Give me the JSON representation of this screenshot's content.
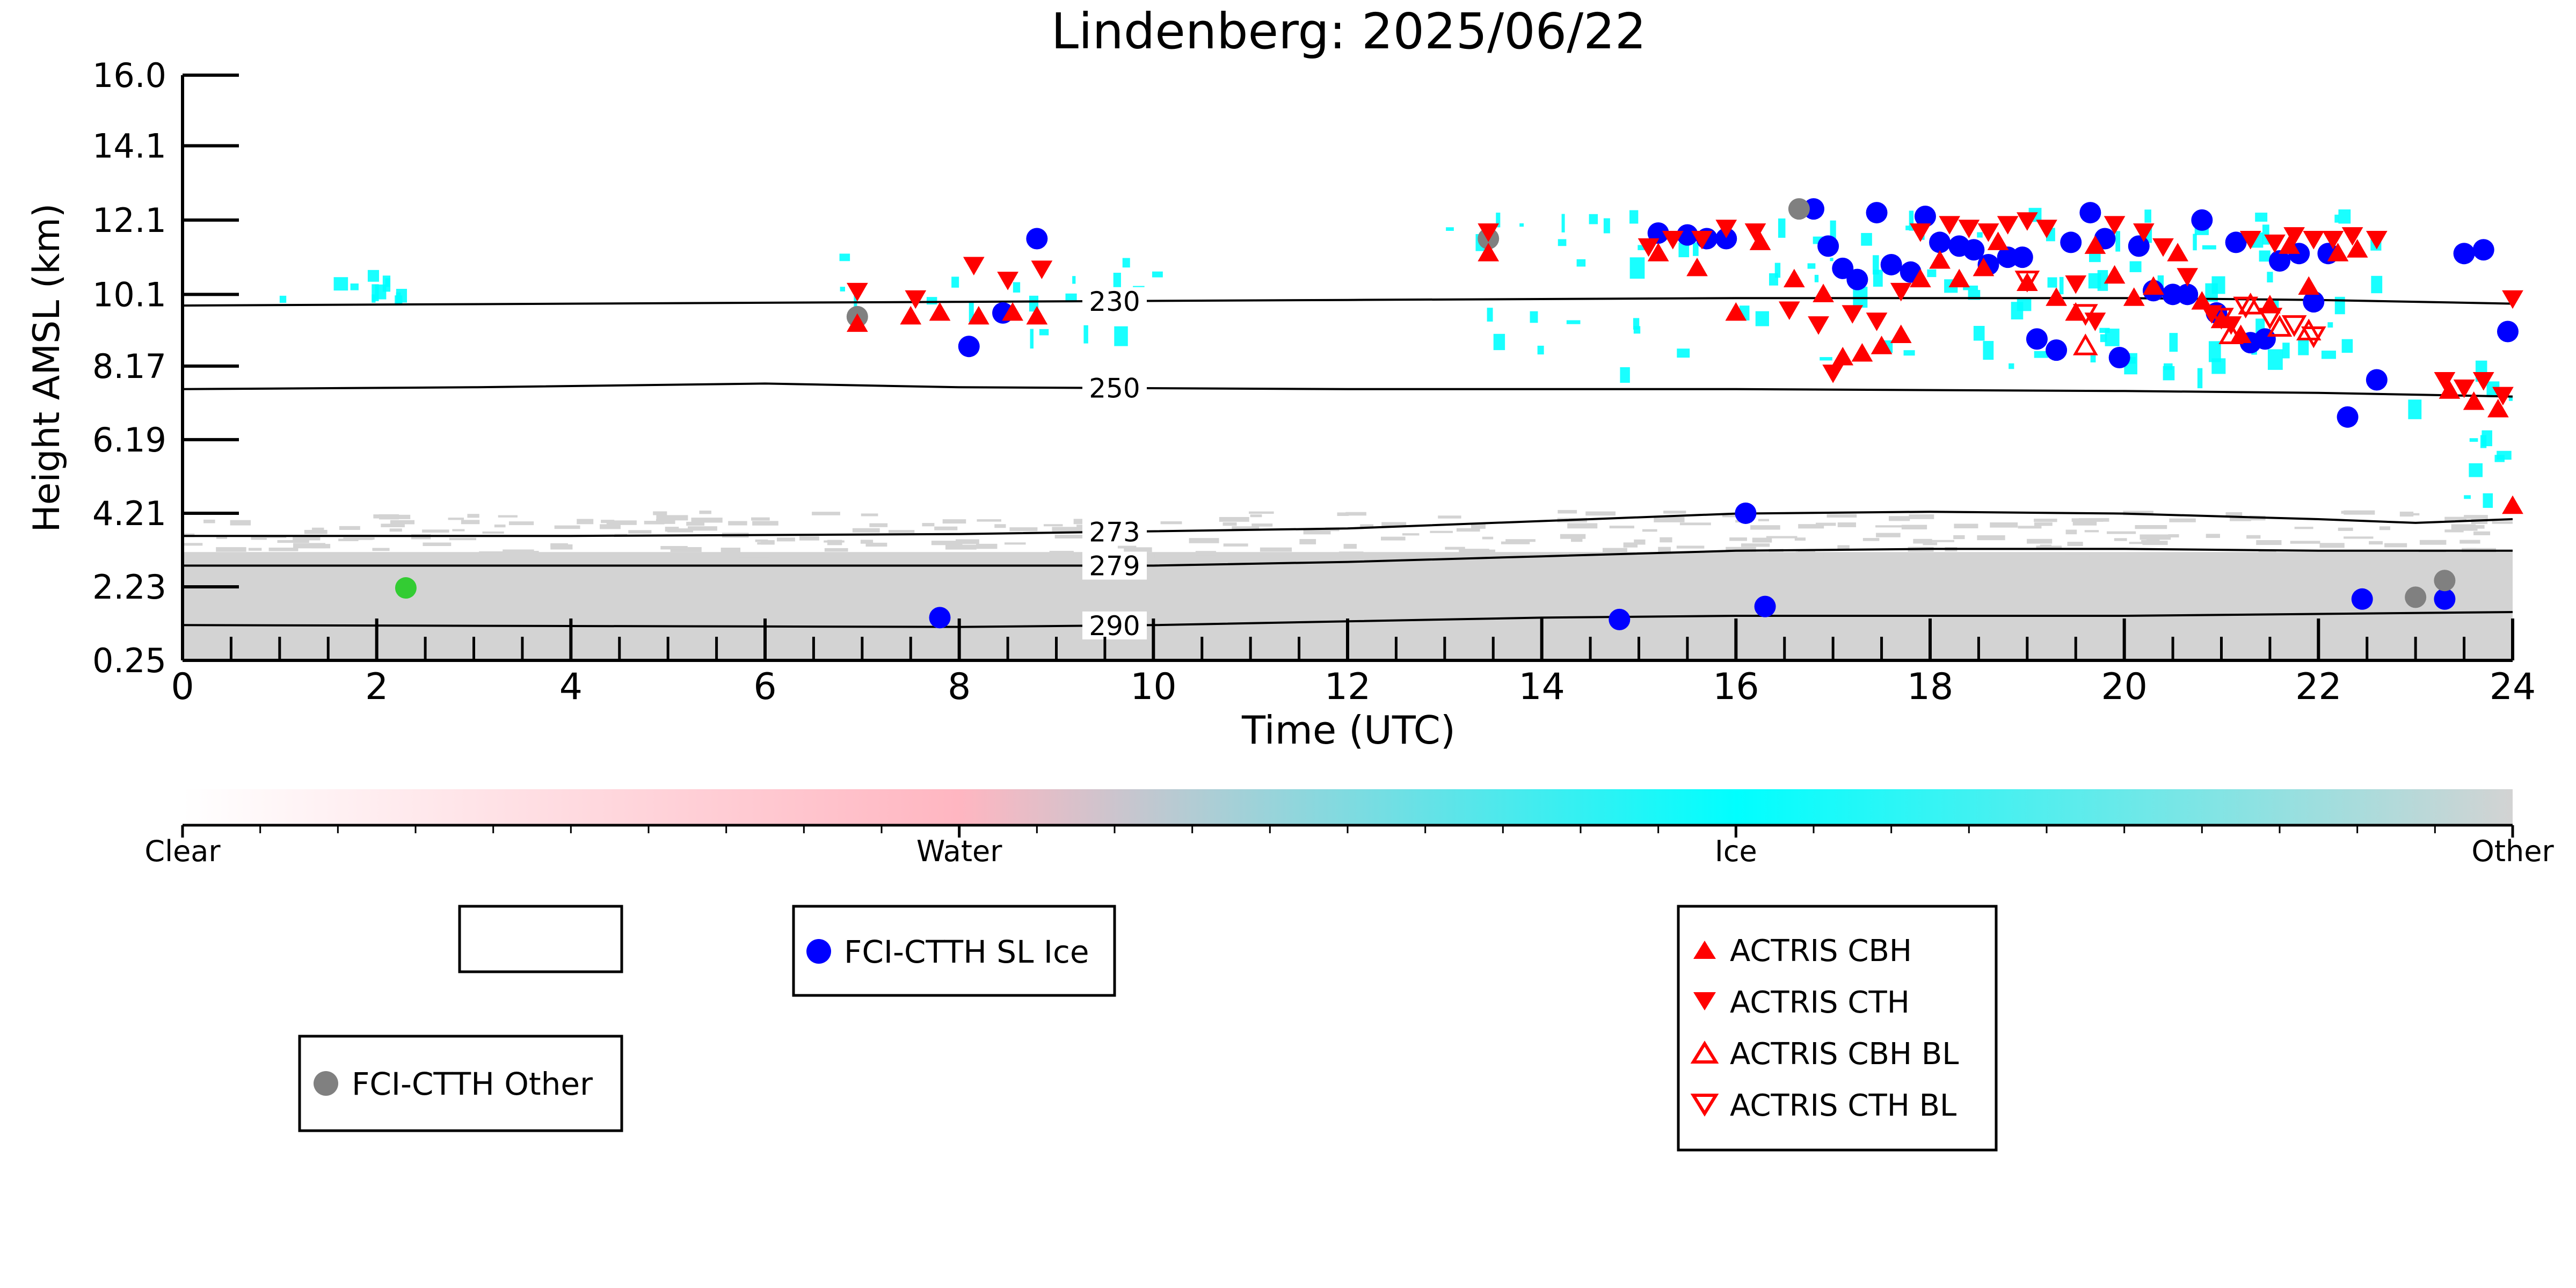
{
  "chart_data": {
    "type": "scatter",
    "title": "Lindenberg: 2025/06/22",
    "xlabel": "Time (UTC)",
    "ylabel": "Height AMSL (km)",
    "xlim": [
      0,
      24
    ],
    "ylim": [
      0.25,
      16.0
    ],
    "xticks": [
      "0",
      "2",
      "4",
      "6",
      "8",
      "10",
      "12",
      "14",
      "16",
      "18",
      "20",
      "22",
      "24"
    ],
    "yticks": [
      "0.25",
      "2.23",
      "4.21",
      "6.19",
      "8.17",
      "10.1",
      "12.1",
      "14.1",
      "16.0"
    ],
    "contours": [
      {
        "label": "230",
        "label_x": 9.6,
        "points": [
          [
            0,
            9.8
          ],
          [
            4,
            9.85
          ],
          [
            8,
            9.9
          ],
          [
            12,
            9.95
          ],
          [
            16,
            10.0
          ],
          [
            18,
            10.0
          ],
          [
            20,
            10.0
          ],
          [
            22,
            9.95
          ],
          [
            24,
            9.85
          ]
        ]
      },
      {
        "label": "250",
        "label_x": 9.6,
        "points": [
          [
            0,
            7.55
          ],
          [
            3,
            7.6
          ],
          [
            6,
            7.7
          ],
          [
            8,
            7.6
          ],
          [
            12,
            7.55
          ],
          [
            16,
            7.55
          ],
          [
            20,
            7.5
          ],
          [
            22,
            7.45
          ],
          [
            24,
            7.35
          ]
        ]
      },
      {
        "label": "273",
        "label_x": 9.6,
        "points": [
          [
            0,
            3.6
          ],
          [
            4,
            3.6
          ],
          [
            8,
            3.65
          ],
          [
            12,
            3.8
          ],
          [
            14,
            4.0
          ],
          [
            16,
            4.2
          ],
          [
            18,
            4.25
          ],
          [
            20,
            4.2
          ],
          [
            22,
            4.05
          ],
          [
            23,
            3.95
          ],
          [
            24,
            4.05
          ]
        ]
      },
      {
        "label": "279",
        "label_x": 9.6,
        "points": [
          [
            0,
            2.8
          ],
          [
            6,
            2.8
          ],
          [
            10,
            2.8
          ],
          [
            12,
            2.9
          ],
          [
            14,
            3.05
          ],
          [
            16,
            3.2
          ],
          [
            18,
            3.25
          ],
          [
            20,
            3.25
          ],
          [
            22,
            3.2
          ],
          [
            24,
            3.2
          ]
        ]
      },
      {
        "label": "290",
        "label_x": 9.6,
        "points": [
          [
            0,
            1.2
          ],
          [
            8,
            1.15
          ],
          [
            10,
            1.2
          ],
          [
            12,
            1.3
          ],
          [
            14,
            1.4
          ],
          [
            16,
            1.45
          ],
          [
            18,
            1.45
          ],
          [
            20,
            1.45
          ],
          [
            22,
            1.5
          ],
          [
            24,
            1.55
          ]
        ]
      }
    ],
    "classification_regions": [
      {
        "class": "Ice",
        "color": "#00ffff",
        "x": [
          1.0,
          2.3
        ],
        "y": [
          10.0,
          10.8
        ]
      },
      {
        "class": "Ice",
        "color": "#00ffff",
        "x": [
          6.5,
          10.0
        ],
        "y": [
          9.0,
          11.2
        ]
      },
      {
        "class": "Ice",
        "color": "#00ffff",
        "x": [
          13.0,
          22.6
        ],
        "y": [
          8.0,
          12.5
        ]
      },
      {
        "class": "Ice",
        "color": "#00ffff",
        "x": [
          22.8,
          24.0
        ],
        "y": [
          4.5,
          8.5
        ]
      },
      {
        "class": "Other",
        "color": "#d3d3d3",
        "x": [
          0,
          24.0
        ],
        "y": [
          0.25,
          4.3
        ]
      }
    ],
    "series": [
      {
        "name": "FCI-CTTH SL Ice",
        "color": "#0000ff",
        "marker": "circle",
        "points": [
          [
            7.8,
            1.4
          ],
          [
            8.1,
            8.7
          ],
          [
            8.45,
            9.6
          ],
          [
            8.8,
            11.6
          ],
          [
            14.8,
            1.35
          ],
          [
            15.2,
            11.75
          ],
          [
            15.5,
            11.7
          ],
          [
            15.7,
            11.6
          ],
          [
            15.9,
            11.6
          ],
          [
            16.1,
            4.21
          ],
          [
            16.3,
            1.7
          ],
          [
            16.8,
            12.4
          ],
          [
            16.95,
            11.4
          ],
          [
            17.1,
            10.8
          ],
          [
            17.25,
            10.5
          ],
          [
            17.45,
            12.3
          ],
          [
            17.6,
            10.9
          ],
          [
            17.8,
            10.7
          ],
          [
            17.95,
            12.2
          ],
          [
            18.1,
            11.5
          ],
          [
            18.3,
            11.4
          ],
          [
            18.45,
            11.3
          ],
          [
            18.6,
            10.9
          ],
          [
            18.8,
            11.1
          ],
          [
            18.95,
            11.1
          ],
          [
            19.1,
            8.9
          ],
          [
            19.3,
            8.6
          ],
          [
            19.45,
            11.5
          ],
          [
            19.65,
            12.3
          ],
          [
            19.8,
            11.6
          ],
          [
            19.95,
            8.4
          ],
          [
            20.15,
            11.4
          ],
          [
            20.3,
            10.2
          ],
          [
            20.5,
            10.1
          ],
          [
            20.65,
            10.1
          ],
          [
            20.8,
            12.1
          ],
          [
            20.95,
            9.6
          ],
          [
            21.15,
            11.5
          ],
          [
            21.3,
            8.8
          ],
          [
            21.45,
            8.9
          ],
          [
            21.6,
            11.0
          ],
          [
            21.8,
            11.2
          ],
          [
            21.95,
            9.9
          ],
          [
            22.1,
            11.2
          ],
          [
            22.3,
            6.8
          ],
          [
            22.45,
            1.9
          ],
          [
            22.6,
            7.8
          ],
          [
            23.3,
            1.9
          ],
          [
            23.5,
            11.2
          ],
          [
            23.7,
            11.3
          ],
          [
            23.95,
            9.1
          ]
        ]
      },
      {
        "name": "FCI-CTTH Other",
        "color": "#808080",
        "marker": "circle",
        "points": [
          [
            6.95,
            9.5
          ],
          [
            13.45,
            11.6
          ],
          [
            16.65,
            12.4
          ],
          [
            23.0,
            1.95
          ],
          [
            23.3,
            2.4
          ]
        ]
      },
      {
        "name": "",
        "color": "#33cc33",
        "marker": "circle",
        "points": [
          [
            2.3,
            2.2
          ]
        ]
      },
      {
        "name": "ACTRIS CBH",
        "color": "#ff0000",
        "marker": "triangle-up",
        "points": [
          [
            6.95,
            9.3
          ],
          [
            7.5,
            9.5
          ],
          [
            7.8,
            9.6
          ],
          [
            8.2,
            9.5
          ],
          [
            8.55,
            9.6
          ],
          [
            8.8,
            9.5
          ],
          [
            13.45,
            11.2
          ],
          [
            15.2,
            11.2
          ],
          [
            15.6,
            10.8
          ],
          [
            16.0,
            9.6
          ],
          [
            16.25,
            11.5
          ],
          [
            16.6,
            10.5
          ],
          [
            16.9,
            10.1
          ],
          [
            17.1,
            8.4
          ],
          [
            17.3,
            8.5
          ],
          [
            17.5,
            8.7
          ],
          [
            17.7,
            9.0
          ],
          [
            17.9,
            10.5
          ],
          [
            18.1,
            11.0
          ],
          [
            18.3,
            10.5
          ],
          [
            18.55,
            10.8
          ],
          [
            18.7,
            11.5
          ],
          [
            19.0,
            10.4
          ],
          [
            19.3,
            10.0
          ],
          [
            19.5,
            9.6
          ],
          [
            19.7,
            11.4
          ],
          [
            19.9,
            10.6
          ],
          [
            20.1,
            10.0
          ],
          [
            20.3,
            10.3
          ],
          [
            20.55,
            11.2
          ],
          [
            20.8,
            9.9
          ],
          [
            21.0,
            9.4
          ],
          [
            21.2,
            9.0
          ],
          [
            21.5,
            9.8
          ],
          [
            21.7,
            11.4
          ],
          [
            21.9,
            10.3
          ],
          [
            22.2,
            11.2
          ],
          [
            22.4,
            11.3
          ],
          [
            23.35,
            7.5
          ],
          [
            23.6,
            7.2
          ],
          [
            23.85,
            7.0
          ],
          [
            24.0,
            4.4
          ]
        ]
      },
      {
        "name": "ACTRIS CTH",
        "color": "#ff0000",
        "marker": "triangle-down",
        "points": [
          [
            6.95,
            10.2
          ],
          [
            7.55,
            10.0
          ],
          [
            8.15,
            10.9
          ],
          [
            8.5,
            10.5
          ],
          [
            8.85,
            10.8
          ],
          [
            13.45,
            11.8
          ],
          [
            15.1,
            11.4
          ],
          [
            15.35,
            11.6
          ],
          [
            15.65,
            11.6
          ],
          [
            15.9,
            11.9
          ],
          [
            16.2,
            11.8
          ],
          [
            16.55,
            9.7
          ],
          [
            16.85,
            9.3
          ],
          [
            17.0,
            8.0
          ],
          [
            17.2,
            9.6
          ],
          [
            17.45,
            9.4
          ],
          [
            17.7,
            10.2
          ],
          [
            17.9,
            11.8
          ],
          [
            18.2,
            12.0
          ],
          [
            18.4,
            11.9
          ],
          [
            18.6,
            11.8
          ],
          [
            18.8,
            12.0
          ],
          [
            19.0,
            12.1
          ],
          [
            19.2,
            11.9
          ],
          [
            19.5,
            10.4
          ],
          [
            19.7,
            9.4
          ],
          [
            19.9,
            12.0
          ],
          [
            20.2,
            11.8
          ],
          [
            20.4,
            11.4
          ],
          [
            20.65,
            10.6
          ],
          [
            20.9,
            9.6
          ],
          [
            21.1,
            9.3
          ],
          [
            21.3,
            11.6
          ],
          [
            21.55,
            11.5
          ],
          [
            21.75,
            11.7
          ],
          [
            21.95,
            11.6
          ],
          [
            22.15,
            11.6
          ],
          [
            22.35,
            11.7
          ],
          [
            22.6,
            11.6
          ],
          [
            23.3,
            7.8
          ],
          [
            23.5,
            7.6
          ],
          [
            23.7,
            7.8
          ],
          [
            23.9,
            7.4
          ],
          [
            24.0,
            10.0
          ]
        ]
      },
      {
        "name": "ACTRIS CBH BL",
        "color": "#ff0000",
        "marker": "triangle-up-open",
        "points": [
          [
            19.6,
            8.7
          ],
          [
            21.1,
            9.0
          ],
          [
            21.3,
            9.8
          ],
          [
            21.6,
            9.2
          ],
          [
            21.9,
            9.1
          ]
        ]
      },
      {
        "name": "ACTRIS CTH BL",
        "color": "#ff0000",
        "marker": "triangle-down-open",
        "points": [
          [
            19.0,
            10.5
          ],
          [
            19.6,
            9.6
          ],
          [
            21.0,
            9.5
          ],
          [
            21.25,
            9.8
          ],
          [
            21.5,
            9.5
          ],
          [
            21.75,
            9.3
          ],
          [
            21.95,
            9.0
          ]
        ]
      }
    ],
    "colorbar": {
      "labels": [
        "Clear",
        "Water",
        "Ice",
        "Other"
      ],
      "stops": [
        "#ffffff",
        "#ffb6c1",
        "#00ffff",
        "#d3d3d3"
      ]
    },
    "legend": {
      "empty_box": "",
      "sl_ice": "FCI-CTTH SL Ice",
      "other": "FCI-CTTH Other",
      "actris": [
        "ACTRIS CBH",
        "ACTRIS CTH",
        "ACTRIS CBH BL",
        "ACTRIS CTH BL"
      ]
    }
  }
}
